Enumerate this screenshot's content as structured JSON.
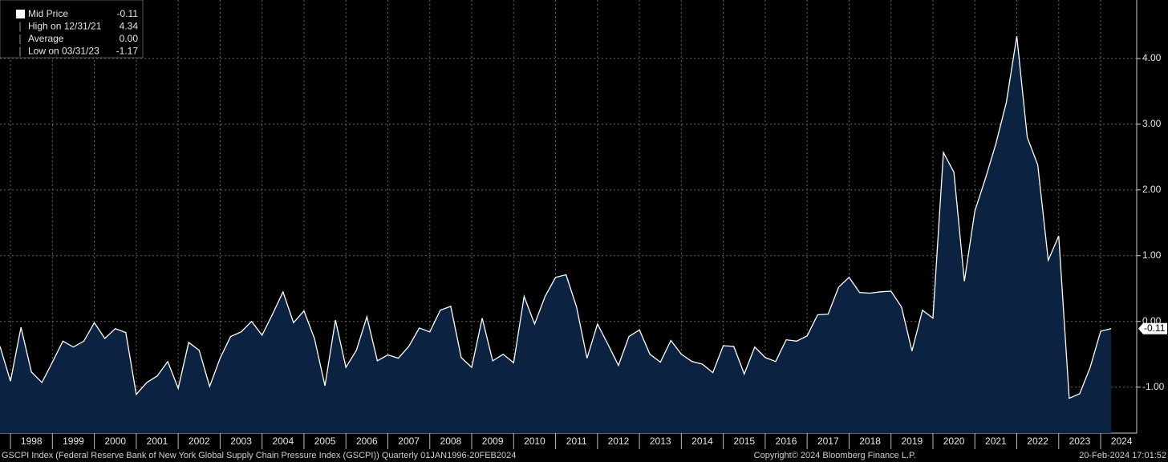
{
  "chart_data": {
    "type": "area",
    "x": [
      1997.75,
      1998,
      1998.25,
      1998.5,
      1998.75,
      1999,
      1999.25,
      1999.5,
      1999.75,
      2000,
      2000.25,
      2000.5,
      2000.75,
      2001,
      2001.25,
      2001.5,
      2001.75,
      2002,
      2002.25,
      2002.5,
      2002.75,
      2003,
      2003.25,
      2003.5,
      2003.75,
      2004,
      2004.25,
      2004.5,
      2004.75,
      2005,
      2005.25,
      2005.5,
      2005.75,
      2006,
      2006.25,
      2006.5,
      2006.75,
      2007,
      2007.25,
      2007.5,
      2007.75,
      2008,
      2008.25,
      2008.5,
      2008.75,
      2009,
      2009.25,
      2009.5,
      2009.75,
      2010,
      2010.25,
      2010.5,
      2010.75,
      2011,
      2011.25,
      2011.5,
      2011.75,
      2012,
      2012.25,
      2012.5,
      2012.75,
      2013,
      2013.25,
      2013.5,
      2013.75,
      2014,
      2014.25,
      2014.5,
      2014.75,
      2015,
      2015.25,
      2015.5,
      2015.75,
      2016,
      2016.25,
      2016.5,
      2016.75,
      2017,
      2017.25,
      2017.5,
      2017.75,
      2018,
      2018.25,
      2018.5,
      2018.75,
      2019,
      2019.25,
      2019.5,
      2019.75,
      2020,
      2020.25,
      2020.5,
      2020.75,
      2021,
      2021.25,
      2021.5,
      2021.75,
      2022,
      2022.25,
      2022.5,
      2022.75,
      2023,
      2023.25,
      2023.5,
      2023.75,
      2024,
      2024.25
    ],
    "series": [
      {
        "name": "Mid Price",
        "color": "#ffffff",
        "fill": "#0b2240",
        "values": [
          -0.38,
          -0.91,
          -0.09,
          -0.77,
          -0.93,
          -0.62,
          -0.3,
          -0.39,
          -0.3,
          -0.02,
          -0.26,
          -0.11,
          -0.17,
          -1.11,
          -0.93,
          -0.83,
          -0.61,
          -1.02,
          -0.32,
          -0.44,
          -0.99,
          -0.56,
          -0.23,
          -0.16,
          0,
          -0.21,
          0.11,
          0.45,
          -0.02,
          0.16,
          -0.26,
          -0.98,
          0.02,
          -0.7,
          -0.44,
          0.07,
          -0.6,
          -0.51,
          -0.56,
          -0.38,
          -0.1,
          -0.16,
          0.17,
          0.23,
          -0.55,
          -0.7,
          0.05,
          -0.6,
          -0.5,
          -0.63,
          0.38,
          -0.04,
          0.38,
          0.67,
          0.71,
          0.22,
          -0.56,
          -0.04,
          -0.35,
          -0.67,
          -0.23,
          -0.13,
          -0.5,
          -0.62,
          -0.29,
          -0.5,
          -0.61,
          -0.65,
          -0.78,
          -0.37,
          -0.38,
          -0.8,
          -0.39,
          -0.55,
          -0.61,
          -0.28,
          -0.3,
          -0.22,
          0.1,
          0.11,
          0.52,
          0.67,
          0.44,
          0.43,
          0.45,
          0.46,
          0.22,
          -0.45,
          0.17,
          0.05,
          2.57,
          2.27,
          0.61,
          1.68,
          2.17,
          2.7,
          3.33,
          4.34,
          2.8,
          2.38,
          0.93,
          1.3,
          -1.17,
          -1.1,
          -0.7,
          -0.15,
          -0.11
        ]
      }
    ],
    "xlim": [
      1997.75,
      2024.86
    ],
    "xticks": [
      {
        "value": 1998,
        "label": "1998"
      },
      {
        "value": 1999,
        "label": "1999"
      },
      {
        "value": 2000,
        "label": "2000"
      },
      {
        "value": 2001,
        "label": "2001"
      },
      {
        "value": 2002,
        "label": "2002"
      },
      {
        "value": 2003,
        "label": "2003"
      },
      {
        "value": 2004,
        "label": "2004"
      },
      {
        "value": 2005,
        "label": "2005"
      },
      {
        "value": 2006,
        "label": "2006"
      },
      {
        "value": 2007,
        "label": "2007"
      },
      {
        "value": 2008,
        "label": "2008"
      },
      {
        "value": 2009,
        "label": "2009"
      },
      {
        "value": 2010,
        "label": "2010"
      },
      {
        "value": 2011,
        "label": "2011"
      },
      {
        "value": 2012,
        "label": "2012"
      },
      {
        "value": 2013,
        "label": "2013"
      },
      {
        "value": 2014,
        "label": "2014"
      },
      {
        "value": 2015,
        "label": "2015"
      },
      {
        "value": 2016,
        "label": "2016"
      },
      {
        "value": 2017,
        "label": "2017"
      },
      {
        "value": 2018,
        "label": "2018"
      },
      {
        "value": 2019,
        "label": "2019"
      },
      {
        "value": 2020,
        "label": "2020"
      },
      {
        "value": 2021,
        "label": "2021"
      },
      {
        "value": 2022,
        "label": "2022"
      },
      {
        "value": 2023,
        "label": "2023"
      },
      {
        "value": 2024,
        "label": "2024"
      }
    ],
    "ylim": [
      -1.7,
      4.89
    ],
    "yticks": [
      {
        "value": -1,
        "label": "-1.00"
      },
      {
        "value": 0,
        "label": "0.00"
      },
      {
        "value": 1,
        "label": "1.00"
      },
      {
        "value": 2,
        "label": "2.00"
      },
      {
        "value": 3,
        "label": "3.00"
      },
      {
        "value": 4,
        "label": "4.00"
      }
    ],
    "grid": true,
    "last_value_label": "-0.11",
    "legend": [
      {
        "label": "Mid Price",
        "value": "-0.11"
      },
      {
        "label": "High on 12/31/21",
        "value": "4.34"
      },
      {
        "label": "Average",
        "value": "0.00"
      },
      {
        "label": "Low on 03/31/23",
        "value": "-1.17"
      }
    ],
    "footer": {
      "source": "GSCPI Index (Federal Reserve Bank of New York Global Supply Chain Pressure Index (GSCPI))  Quarterly 01JAN1996-20FEB2024",
      "copyright": "Copyright© 2024 Bloomberg Finance L.P.",
      "timestamp": "20-Feb-2024 17:01:52"
    }
  }
}
